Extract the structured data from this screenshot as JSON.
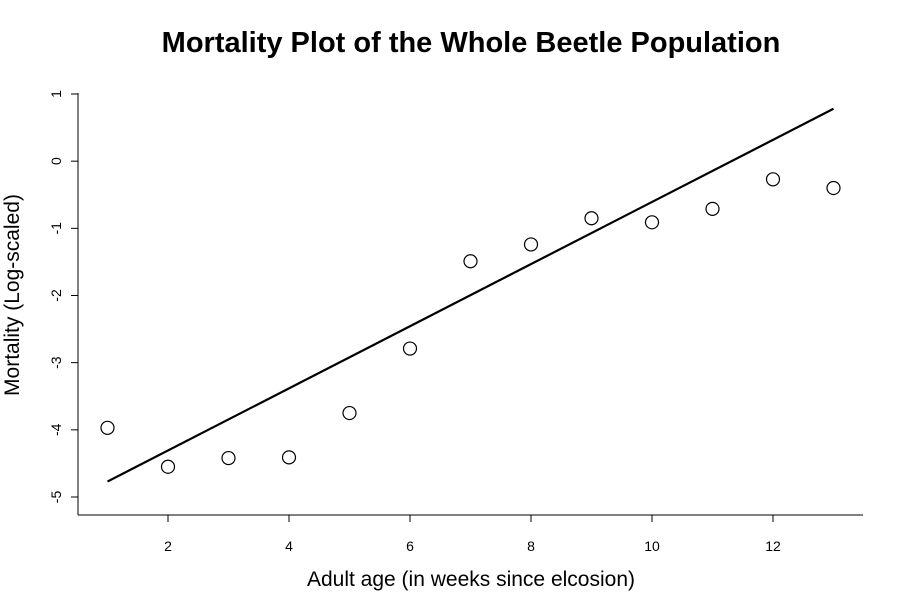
{
  "chart_data": {
    "type": "scatter",
    "title": "Mortality Plot of the Whole Beetle Population",
    "xlabel": "Adult age (in weeks since elcosion)",
    "ylabel": "Mortality (Log-scaled)",
    "xlim": [
      0.7,
      13.5
    ],
    "ylim": [
      -5.2,
      1.2
    ],
    "x_ticks": [
      2,
      4,
      6,
      8,
      10,
      12
    ],
    "y_ticks": [
      -5,
      -4,
      -3,
      -2,
      -1,
      0,
      1
    ],
    "grid": false,
    "legend": "none",
    "series": [
      {
        "type": "scatter",
        "marker": "open-circle",
        "x": [
          1,
          2,
          3,
          4,
          5,
          6,
          7,
          8,
          9,
          10,
          11,
          12,
          13
        ],
        "y": [
          -3.97,
          -4.55,
          -4.42,
          -4.41,
          -3.75,
          -2.79,
          -1.49,
          -1.24,
          -0.85,
          -0.91,
          -0.71,
          -0.27,
          -0.4
        ]
      },
      {
        "type": "line",
        "x": [
          1,
          13
        ],
        "y": [
          -4.77,
          0.78
        ]
      }
    ]
  }
}
